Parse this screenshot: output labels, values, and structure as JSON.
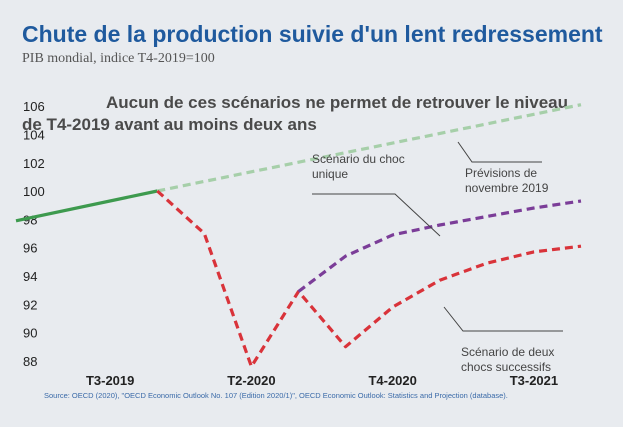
{
  "chart_data": {
    "type": "line",
    "title": "Chute de la production suivie d'un lent redressement",
    "subtitle": "PIB mondial, indice T4-2019=100",
    "headline": "Aucun de ces scénarios ne permet de retrouver le niveau de T4-2019 avant au moins deux ans",
    "ylim": [
      87,
      107
    ],
    "yticks": [
      88,
      90,
      92,
      94,
      96,
      98,
      100,
      102,
      104,
      106
    ],
    "xlim": [
      0,
      12
    ],
    "xticks": [
      {
        "x": 2,
        "label": "T3-2019"
      },
      {
        "x": 5,
        "label": "T2-2020"
      },
      {
        "x": 8,
        "label": "T4-2020"
      },
      {
        "x": 11,
        "label": "T3-2021"
      }
    ],
    "series": [
      {
        "key": "history",
        "color": "#3d9a4e",
        "dash": "solid",
        "x": [
          0,
          3
        ],
        "y": [
          97.9,
          100.0
        ]
      },
      {
        "key": "forecast",
        "name": "Prévisions de novembre 2019",
        "color": "#a6cfa9",
        "dash": "dashed",
        "x": [
          3,
          12
        ],
        "y": [
          100.0,
          106.1
        ]
      },
      {
        "key": "double",
        "name": "Scénario de deux chocs successifs",
        "color": "#d9333a",
        "dash": "dashed",
        "x": [
          3,
          4,
          5,
          6,
          7,
          8,
          9,
          10,
          11,
          12
        ],
        "y": [
          100.0,
          97.0,
          87.6,
          92.9,
          89.0,
          91.8,
          93.7,
          94.9,
          95.7,
          96.1
        ]
      },
      {
        "key": "single",
        "name": "Scénario du choc unique",
        "color": "#7b3d98",
        "dash": "dashed",
        "x": [
          6,
          7,
          8,
          9,
          10,
          11,
          12
        ],
        "y": [
          92.9,
          95.4,
          96.9,
          97.6,
          98.2,
          98.8,
          99.3
        ]
      }
    ],
    "annotations": [
      {
        "key": "single",
        "lines": [
          "Scénario du choc",
          "unique"
        ]
      },
      {
        "key": "forecast",
        "lines": [
          "Prévisions de",
          "novembre 2019"
        ]
      },
      {
        "key": "double",
        "lines": [
          "Scénario de deux",
          "chocs successifs"
        ]
      }
    ],
    "source": "Source: OECD (2020), \"OECD Economic Outlook No. 107 (Edition 2020/1)\", OECD Economic Outlook: Statistics and Projection (database)."
  }
}
